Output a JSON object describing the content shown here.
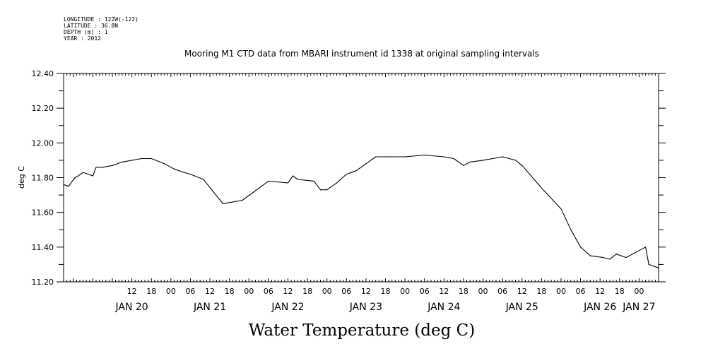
{
  "header": {
    "longitude": "LONGITUDE : 122W(-122)",
    "latitude": "LATITUDE : 36.8N",
    "depth": "DEPTH (m) : 1",
    "year": "YEAR : 2012"
  },
  "chart_data": {
    "type": "line",
    "title": "Mooring M1 CTD data from MBARI instrument id 1338 at original sampling intervals",
    "xlabel": "Water Temperature (deg C)",
    "ylabel": "deg C",
    "ylim": [
      11.2,
      12.4
    ],
    "xlim": [
      "2012-01-19T15:00",
      "2012-01-27T06:00"
    ],
    "yticks": [
      "11.20",
      "11.40",
      "11.60",
      "11.80",
      "12.00",
      "12.20",
      "12.40"
    ],
    "hour_ticks": [
      {
        "t": "2012-01-20T12:00",
        "label": "12"
      },
      {
        "t": "2012-01-20T18:00",
        "label": "18"
      },
      {
        "t": "2012-01-21T00:00",
        "label": "00"
      },
      {
        "t": "2012-01-21T06:00",
        "label": "06"
      },
      {
        "t": "2012-01-21T12:00",
        "label": "12"
      },
      {
        "t": "2012-01-21T18:00",
        "label": "18"
      },
      {
        "t": "2012-01-22T00:00",
        "label": "00"
      },
      {
        "t": "2012-01-22T06:00",
        "label": "06"
      },
      {
        "t": "2012-01-22T12:00",
        "label": "12"
      },
      {
        "t": "2012-01-22T18:00",
        "label": "18"
      },
      {
        "t": "2012-01-23T00:00",
        "label": "00"
      },
      {
        "t": "2012-01-23T06:00",
        "label": "06"
      },
      {
        "t": "2012-01-23T12:00",
        "label": "12"
      },
      {
        "t": "2012-01-23T18:00",
        "label": "18"
      },
      {
        "t": "2012-01-24T00:00",
        "label": "00"
      },
      {
        "t": "2012-01-24T06:00",
        "label": "06"
      },
      {
        "t": "2012-01-24T12:00",
        "label": "12"
      },
      {
        "t": "2012-01-24T18:00",
        "label": "18"
      },
      {
        "t": "2012-01-25T00:00",
        "label": "00"
      },
      {
        "t": "2012-01-25T06:00",
        "label": "06"
      },
      {
        "t": "2012-01-25T12:00",
        "label": "12"
      },
      {
        "t": "2012-01-25T18:00",
        "label": "18"
      },
      {
        "t": "2012-01-26T00:00",
        "label": "00"
      },
      {
        "t": "2012-01-26T06:00",
        "label": "06"
      },
      {
        "t": "2012-01-26T12:00",
        "label": "12"
      },
      {
        "t": "2012-01-26T18:00",
        "label": "18"
      },
      {
        "t": "2012-01-27T00:00",
        "label": "00"
      }
    ],
    "day_labels": [
      {
        "t": "2012-01-20T12:00",
        "label": "JAN 20"
      },
      {
        "t": "2012-01-21T12:00",
        "label": "JAN 21"
      },
      {
        "t": "2012-01-22T12:00",
        "label": "JAN 22"
      },
      {
        "t": "2012-01-23T12:00",
        "label": "JAN 23"
      },
      {
        "t": "2012-01-24T12:00",
        "label": "JAN 24"
      },
      {
        "t": "2012-01-25T12:00",
        "label": "JAN 25"
      },
      {
        "t": "2012-01-26T12:00",
        "label": "JAN 26"
      },
      {
        "t": "2012-01-27T00:00",
        "label": "JAN 27"
      }
    ],
    "series": [
      {
        "color": "#000000",
        "points": [
          [
            "2012-01-19T15:00",
            11.76
          ],
          [
            "2012-01-19T16:30",
            11.75
          ],
          [
            "2012-01-19T18:30",
            11.8
          ],
          [
            "2012-01-19T19:30",
            11.81
          ],
          [
            "2012-01-19T21:00",
            11.83
          ],
          [
            "2012-01-20T00:00",
            11.81
          ],
          [
            "2012-01-20T01:00",
            11.86
          ],
          [
            "2012-01-20T03:00",
            11.86
          ],
          [
            "2012-01-20T06:00",
            11.87
          ],
          [
            "2012-01-20T09:00",
            11.89
          ],
          [
            "2012-01-20T12:00",
            11.9
          ],
          [
            "2012-01-20T15:00",
            11.91
          ],
          [
            "2012-01-20T18:00",
            11.91
          ],
          [
            "2012-01-20T22:00",
            11.88
          ],
          [
            "2012-01-21T01:00",
            11.85
          ],
          [
            "2012-01-21T04:00",
            11.83
          ],
          [
            "2012-01-21T06:00",
            11.82
          ],
          [
            "2012-01-21T10:00",
            11.79
          ],
          [
            "2012-01-21T13:00",
            11.72
          ],
          [
            "2012-01-21T16:00",
            11.65
          ],
          [
            "2012-01-21T22:00",
            11.67
          ],
          [
            "2012-01-22T06:00",
            11.78
          ],
          [
            "2012-01-22T12:00",
            11.77
          ],
          [
            "2012-01-22T13:30",
            11.81
          ],
          [
            "2012-01-22T15:00",
            11.79
          ],
          [
            "2012-01-22T20:00",
            11.78
          ],
          [
            "2012-01-22T22:00",
            11.73
          ],
          [
            "2012-01-23T00:00",
            11.73
          ],
          [
            "2012-01-23T03:00",
            11.77
          ],
          [
            "2012-01-23T06:00",
            11.82
          ],
          [
            "2012-01-23T09:00",
            11.84
          ],
          [
            "2012-01-23T12:00",
            11.88
          ],
          [
            "2012-01-23T15:00",
            11.92
          ],
          [
            "2012-01-23T18:00",
            11.92
          ],
          [
            "2012-01-24T00:00",
            11.92
          ],
          [
            "2012-01-24T06:00",
            11.93
          ],
          [
            "2012-01-24T12:00",
            11.92
          ],
          [
            "2012-01-24T15:00",
            11.91
          ],
          [
            "2012-01-24T18:00",
            11.87
          ],
          [
            "2012-01-24T20:00",
            11.89
          ],
          [
            "2012-01-25T00:00",
            11.9
          ],
          [
            "2012-01-25T06:00",
            11.92
          ],
          [
            "2012-01-25T10:00",
            11.9
          ],
          [
            "2012-01-25T12:00",
            11.87
          ],
          [
            "2012-01-25T18:00",
            11.74
          ],
          [
            "2012-01-26T00:00",
            11.62
          ],
          [
            "2012-01-26T03:00",
            11.5
          ],
          [
            "2012-01-26T06:00",
            11.4
          ],
          [
            "2012-01-26T09:00",
            11.35
          ],
          [
            "2012-01-26T13:00",
            11.34
          ],
          [
            "2012-01-26T15:00",
            11.33
          ],
          [
            "2012-01-26T17:00",
            11.36
          ],
          [
            "2012-01-26T20:00",
            11.34
          ],
          [
            "2012-01-26T23:00",
            11.37
          ],
          [
            "2012-01-27T02:00",
            11.4
          ],
          [
            "2012-01-27T03:00",
            11.3
          ],
          [
            "2012-01-27T06:00",
            11.28
          ]
        ]
      }
    ]
  }
}
